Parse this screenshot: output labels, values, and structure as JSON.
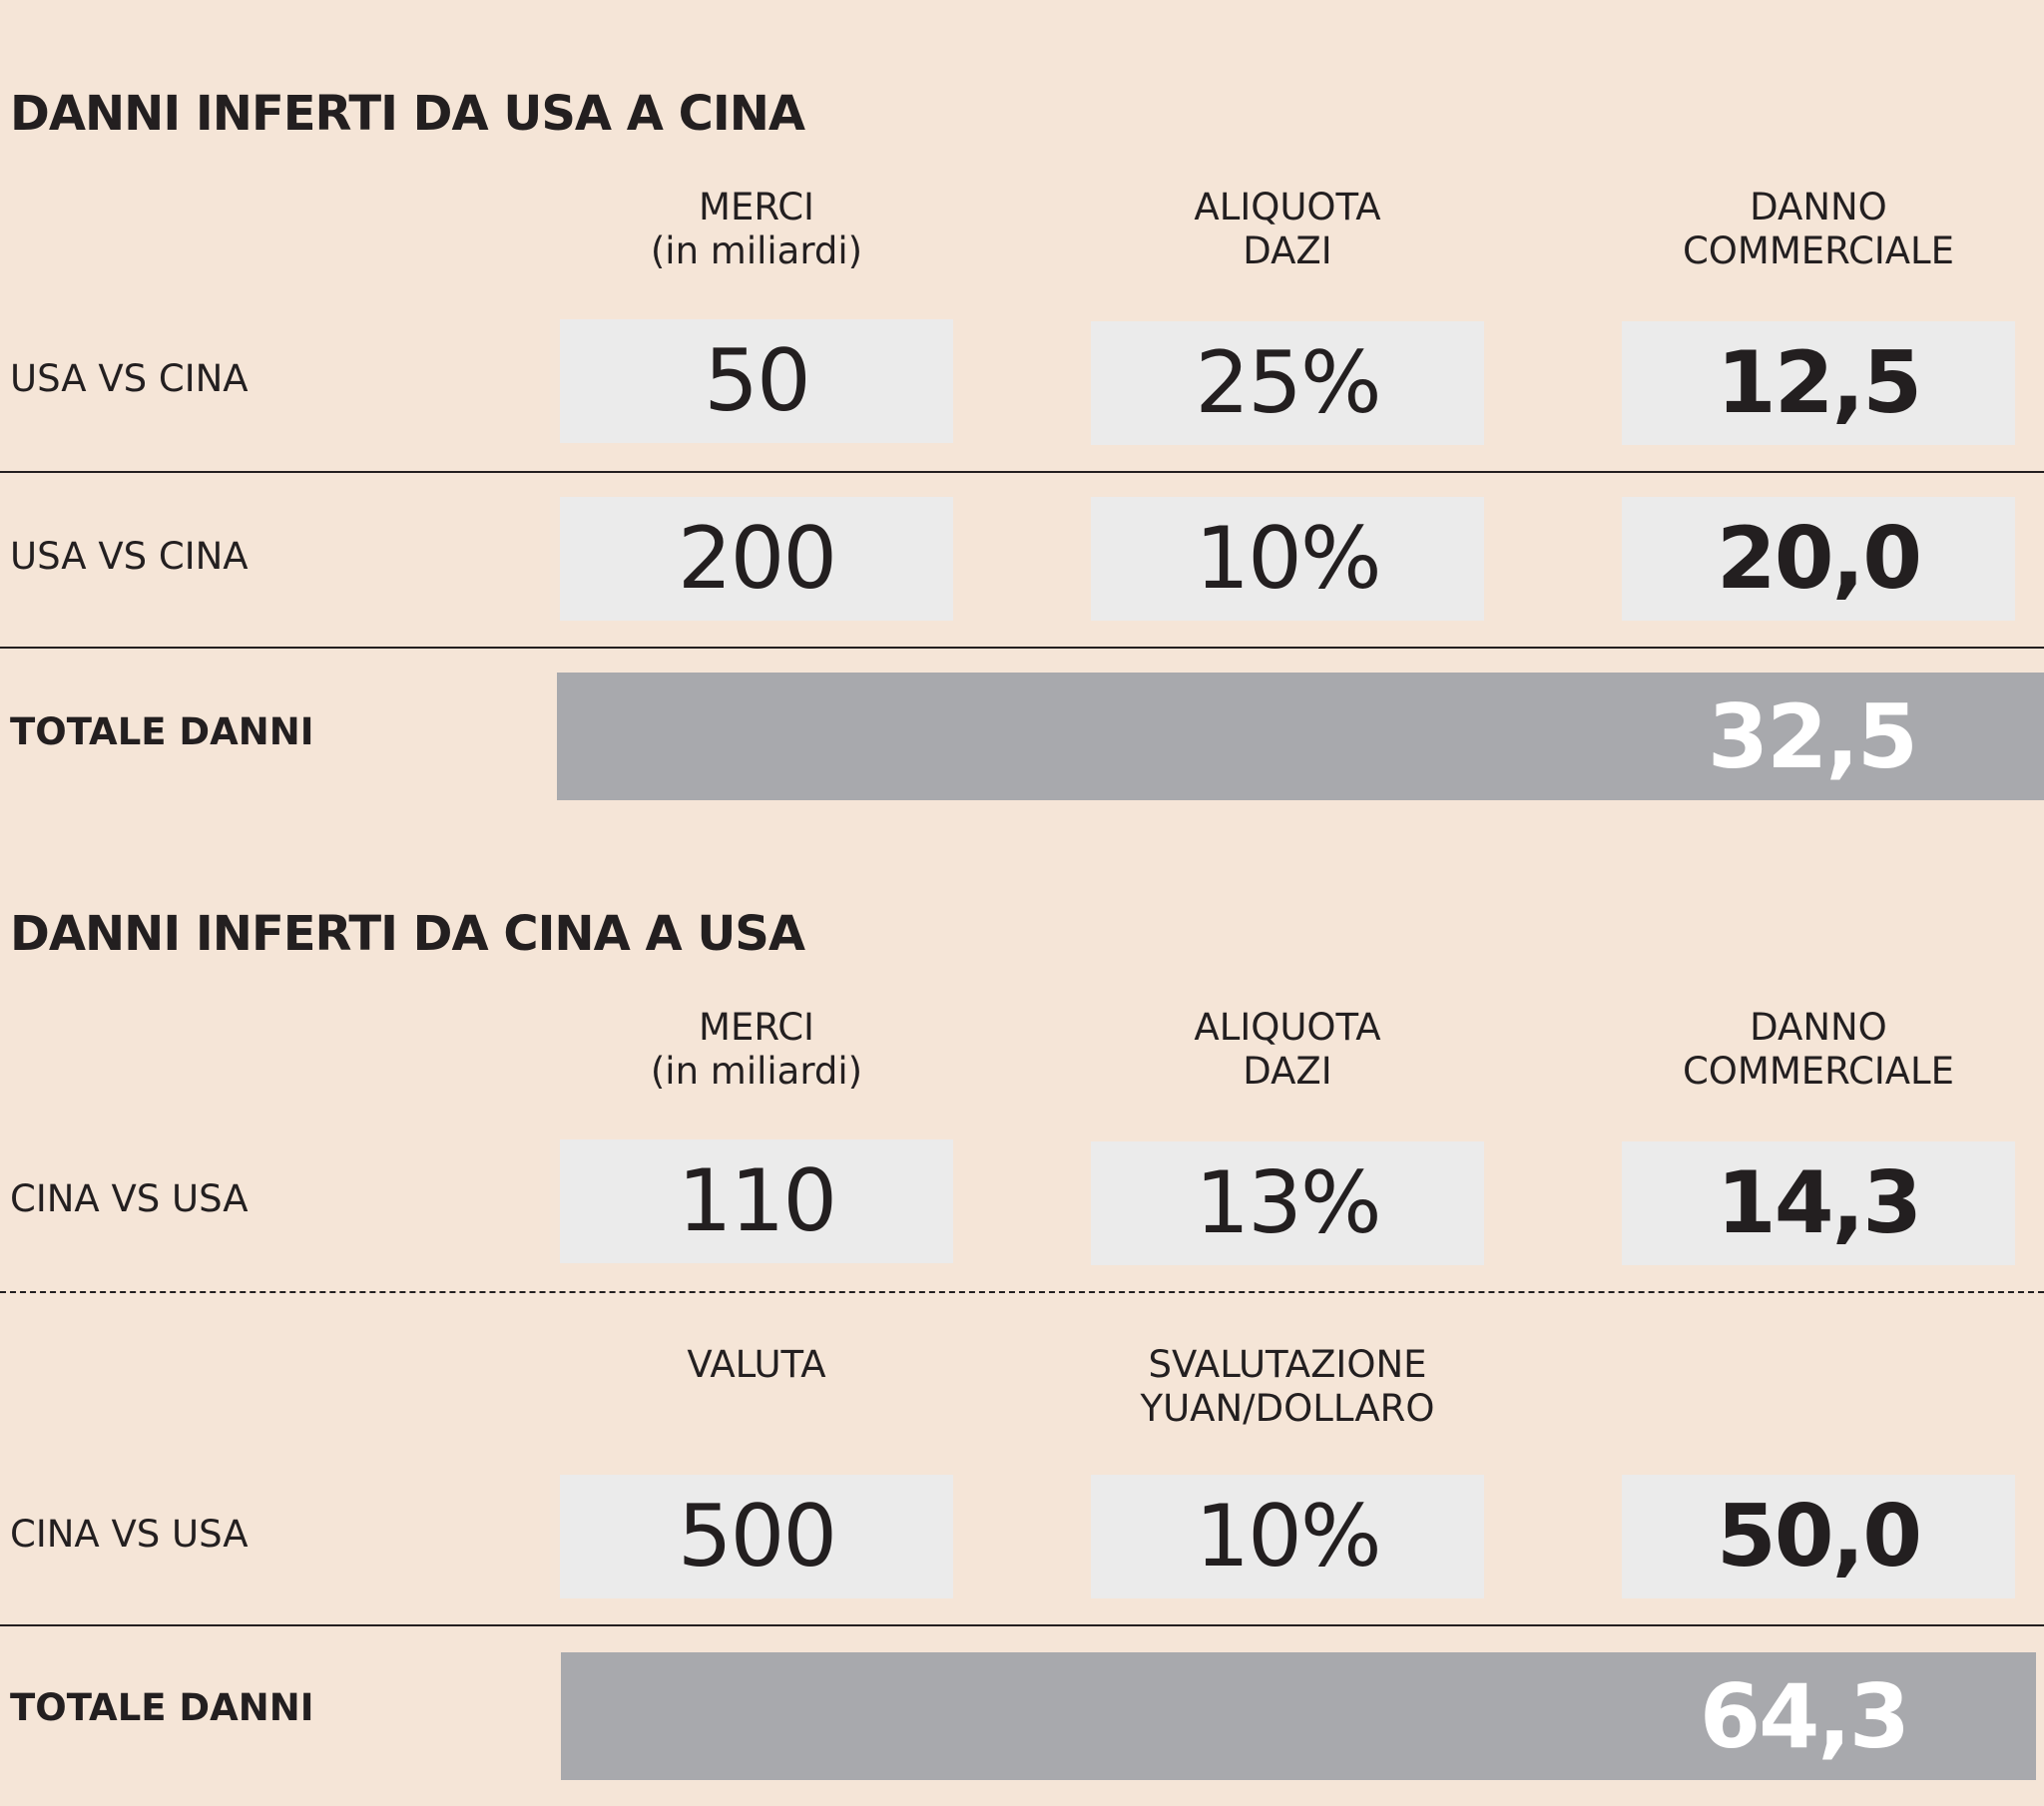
{
  "section1": {
    "title": "DANNI INFERTI DA USA A CINA",
    "headers": [
      "MERCI\n(in miliardi)",
      "ALIQUOTA\nDAZI",
      "DANNO\nCOMMERCIALE"
    ],
    "rows": [
      {
        "label": "USA VS CINA",
        "values": [
          "50",
          "25%",
          "12,5"
        ]
      },
      {
        "label": "USA VS CINA",
        "values": [
          "200",
          "10%",
          "20,0"
        ]
      }
    ],
    "total_label": "TOTALE DANNI",
    "total_value": "32,5"
  },
  "section2": {
    "title": "DANNI INFERTI DA CINA A USA",
    "headers": [
      "MERCI\n(in miliardi)",
      "ALIQUOTA\nDAZI",
      "DANNO\nCOMMERCIALE"
    ],
    "rows": [
      {
        "label": "CINA VS USA",
        "values": [
          "110",
          "13%",
          "14,3"
        ]
      }
    ],
    "headers2": [
      "VALUTA",
      "SVALUTAZIONE\nYUAN/DOLLARO"
    ],
    "rows2": [
      {
        "label": "CINA VS USA",
        "values": [
          "500",
          "10%",
          "50,0"
        ]
      }
    ],
    "total_label": "TOTALE DANNI",
    "total_value": "64,3"
  }
}
